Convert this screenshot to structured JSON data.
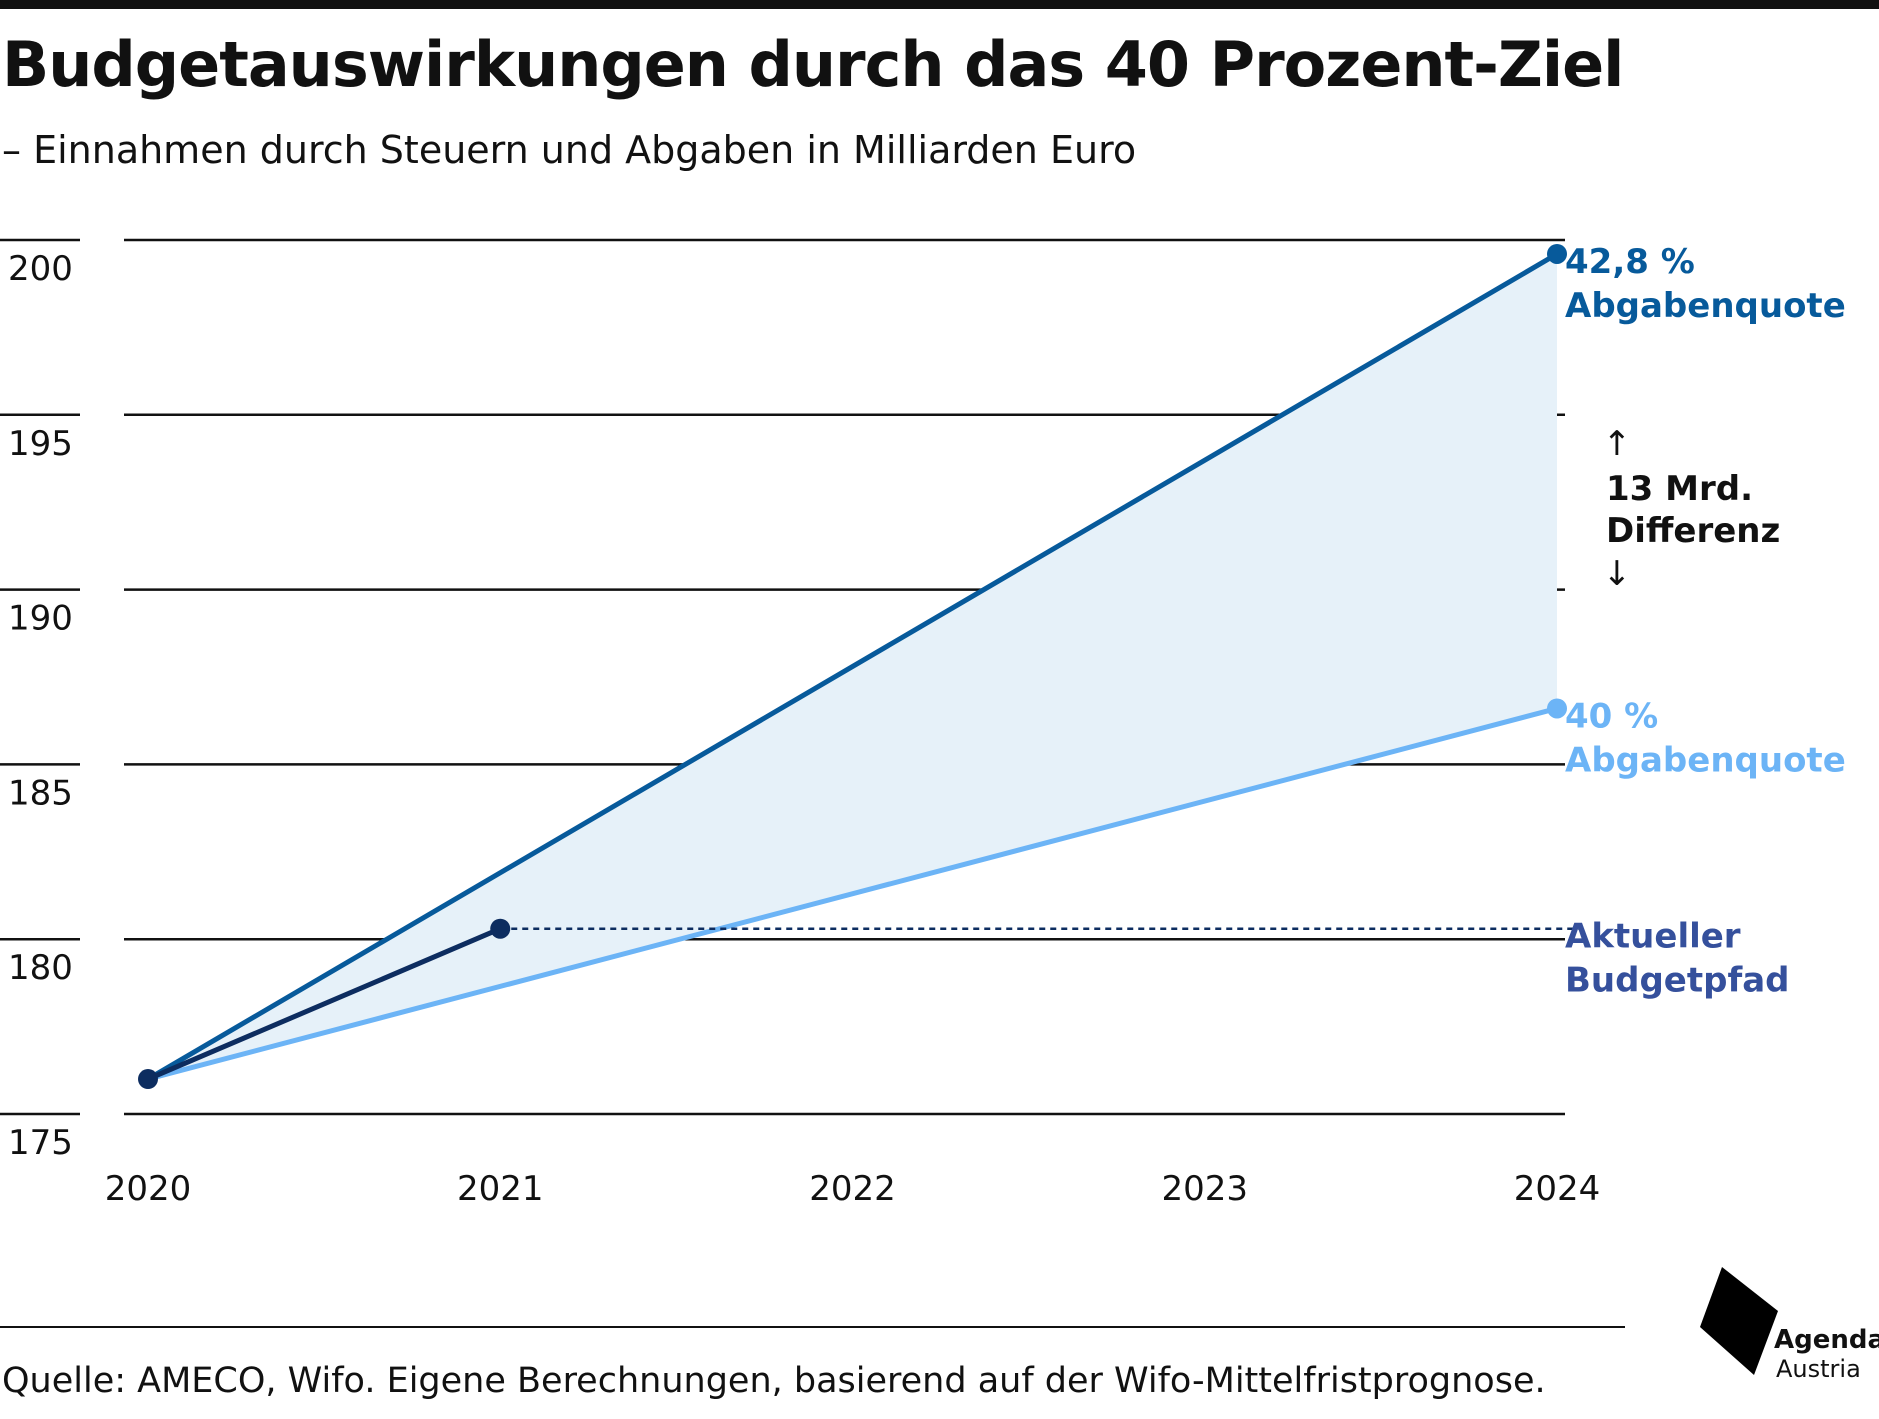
{
  "header": {
    "title": "Budgetauswirkungen durch das 40 Prozent-Ziel",
    "subtitle": "– Einnahmen durch Steuern und Abgaben in Milliarden Euro"
  },
  "chart_data": {
    "type": "line",
    "title": "Budgetauswirkungen durch das 40 Prozent-Ziel",
    "subtitle": "– Einnahmen durch Steuern und Abgaben in Milliarden Euro",
    "x": [
      2020,
      2021,
      2022,
      2023,
      2024
    ],
    "x_tick_labels": [
      "2020",
      "2021",
      "2022",
      "2023",
      "2024"
    ],
    "y_tick_labels": [
      "200",
      "195",
      "190",
      "185",
      "180",
      "175"
    ],
    "y_ticks": [
      200,
      195,
      190,
      185,
      180,
      175
    ],
    "ylim": [
      175,
      200
    ],
    "grid": true,
    "series": [
      {
        "key": "quote428",
        "x": [
          2020,
          2024
        ],
        "values": [
          176.0,
          199.6
        ],
        "color": "#075a9b",
        "label_lines": [
          "42,8 %",
          "Abgabenquote"
        ],
        "markers": [
          false,
          true
        ]
      },
      {
        "key": "quote40",
        "x": [
          2020,
          2024
        ],
        "values": [
          176.0,
          186.6
        ],
        "color": "#6cb4f6",
        "label_lines": [
          "40 %",
          "Abgabenquote"
        ],
        "markers": [
          false,
          true
        ]
      },
      {
        "key": "budgetpfad",
        "x": [
          2020,
          2021
        ],
        "values": [
          176.0,
          180.3
        ],
        "color": "#0d2d60",
        "label_lines": [
          "Aktueller",
          "Budgetpfad"
        ],
        "label_color": "#35509c",
        "markers": [
          true,
          true
        ],
        "dotted_extension_to": 2024
      }
    ],
    "shaded_area_between": [
      "quote428",
      "quote40"
    ],
    "shade_color": "#e6f1f9",
    "annotation": {
      "lines": [
        "13 Mrd.",
        "Differenz"
      ],
      "arrow_up": "↑",
      "arrow_down": "↓"
    }
  },
  "footer": {
    "source": "Quelle: AMECO, Wifo. Eigene Berechnungen, basierend auf der Wifo-Mittelfristprognose."
  },
  "logo": {
    "line1": "Agenda",
    "line2": "Austria",
    "color": "#000000"
  }
}
